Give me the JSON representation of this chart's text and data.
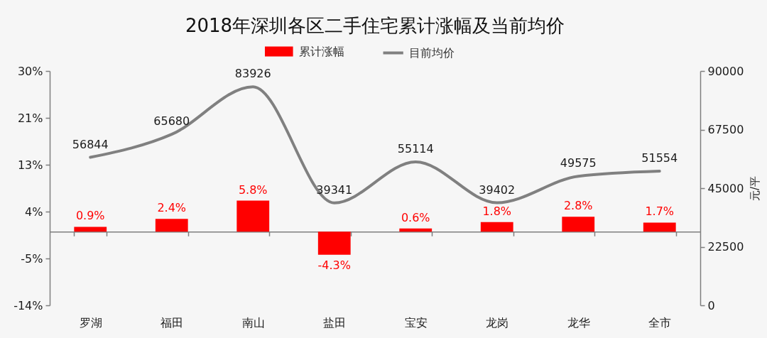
{
  "chart_data": {
    "type": "bar",
    "title": "2018年深圳各区二手住宅累计涨幅及当前均价",
    "y2label": "元/平",
    "categories": [
      "罗湖",
      "福田",
      "南山",
      "盐田",
      "宝安",
      "龙岗",
      "龙华",
      "全市"
    ],
    "series": [
      {
        "name": "累计涨幅",
        "color": "#ff0000",
        "values": [
          0.9,
          2.4,
          5.8,
          -4.3,
          0.6,
          1.8,
          2.8,
          1.7
        ],
        "value_labels": [
          "0.9%",
          "2.4%",
          "5.8%",
          "-4.3%",
          "0.6%",
          "1.8%",
          "2.8%",
          "1.7%"
        ]
      },
      {
        "name": "目前均价",
        "type": "line",
        "axis": "y2",
        "color": "#808080",
        "values": [
          56844,
          65680,
          83926,
          39341,
          55114,
          39402,
          49575,
          51554
        ],
        "value_labels": [
          "56844",
          "65680",
          "83926",
          "39341",
          "55114",
          "39402",
          "49575",
          "51554"
        ]
      }
    ],
    "ylim": [
      -13.75,
      30
    ],
    "yticks": [
      {
        "value": -13.75,
        "label": "-14%"
      },
      {
        "value": -5,
        "label": "-5%"
      },
      {
        "value": 3.75,
        "label": "4%"
      },
      {
        "value": 12.5,
        "label": "13%"
      },
      {
        "value": 21.25,
        "label": "21%"
      },
      {
        "value": 30,
        "label": "30%"
      }
    ],
    "y2lim": [
      0,
      90000
    ],
    "y2ticks": [
      0,
      22500,
      45000,
      67500,
      90000
    ],
    "legend": "top"
  }
}
